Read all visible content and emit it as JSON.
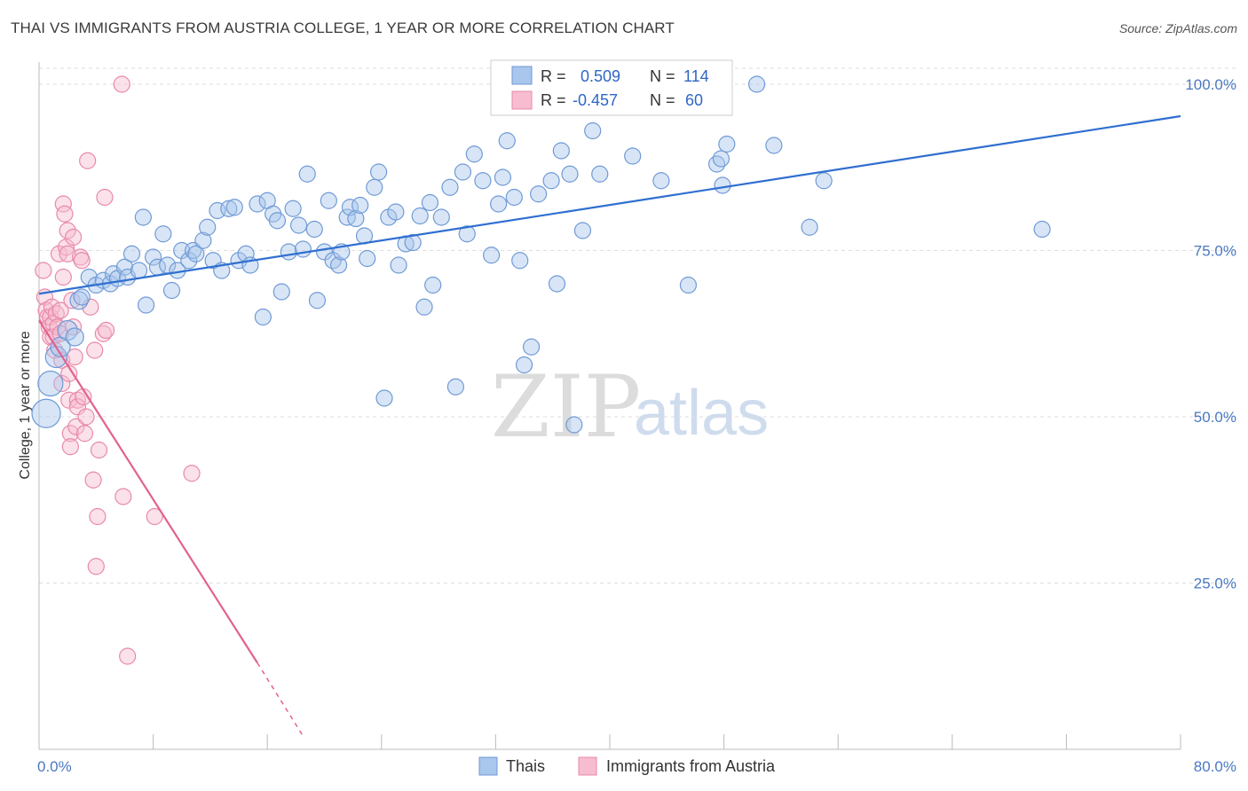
{
  "header": {
    "title": "THAI VS IMMIGRANTS FROM AUSTRIA COLLEGE, 1 YEAR OR MORE CORRELATION CHART",
    "source": "Source: ZipAtlas.com"
  },
  "watermark": {
    "zip": "ZIP",
    "atlas": "atlas"
  },
  "legend": {
    "r_label": "R =",
    "n_label": "N =",
    "series": [
      {
        "r": "0.509",
        "n": "114",
        "color": "#9fc0ea"
      },
      {
        "r": "-0.457",
        "n": "60",
        "color": "#f4aec5"
      }
    ]
  },
  "bottom_legend": [
    "Thais",
    "Immigrants from Austria"
  ],
  "colors": {
    "blue_fill": "#a9c6ec",
    "blue_stroke": "#6f9ad6",
    "blue_line": "#2f6fd0",
    "pink_fill": "#f7bcd0",
    "pink_stroke": "#e889a8",
    "pink_line": "#e2628f",
    "grid": "#dddddd",
    "axis_text": "#4a78c2"
  },
  "chart_data": {
    "type": "scatter",
    "title": "THAI VS IMMIGRANTS FROM AUSTRIA COLLEGE, 1 YEAR OR MORE CORRELATION CHART",
    "xlabel": "",
    "ylabel": "College, 1 year or more",
    "xlim": [
      0,
      80
    ],
    "ylim": [
      0,
      102
    ],
    "x_tick_labels": [
      "0.0%",
      "80.0%"
    ],
    "y_ticks": [
      25,
      50,
      75,
      100
    ],
    "y_tick_labels": [
      "25.0%",
      "50.0%",
      "75.0%",
      "100.0%"
    ],
    "grid": true,
    "legend_position": "top-center",
    "series": [
      {
        "name": "Thais",
        "r": 0.509,
        "n": 114,
        "trend": {
          "x": [
            0,
            80
          ],
          "y": [
            68.5,
            95.2
          ]
        },
        "points": [
          [
            0.5,
            50.5,
            16
          ],
          [
            0.8,
            55,
            14
          ],
          [
            1.2,
            59,
            12
          ],
          [
            1.5,
            60.5,
            11
          ],
          [
            2,
            63,
            11
          ],
          [
            2.5,
            62,
            10
          ],
          [
            2.8,
            67.5,
            10
          ],
          [
            3,
            68,
            9
          ],
          [
            3.5,
            71,
            9
          ],
          [
            4,
            69.8,
            9
          ],
          [
            4.5,
            70.5,
            9
          ],
          [
            5,
            70,
            9
          ],
          [
            5.2,
            71.5,
            9
          ],
          [
            5.5,
            70.8,
            9
          ],
          [
            6,
            72.5,
            9
          ],
          [
            6.2,
            71,
            9
          ],
          [
            6.5,
            74.5,
            9
          ],
          [
            7,
            72,
            9
          ],
          [
            7.3,
            80,
            9
          ],
          [
            7.5,
            66.8,
            9
          ],
          [
            8,
            74,
            9
          ],
          [
            8.3,
            72.5,
            9
          ],
          [
            8.7,
            77.5,
            9
          ],
          [
            9,
            72.8,
            9
          ],
          [
            9.3,
            69,
            9
          ],
          [
            9.7,
            72,
            9
          ],
          [
            10,
            75,
            9
          ],
          [
            10.5,
            73.5,
            9
          ],
          [
            10.8,
            75,
            9
          ],
          [
            11,
            74.5,
            9
          ],
          [
            11.5,
            76.5,
            9
          ],
          [
            11.8,
            78.5,
            9
          ],
          [
            12.2,
            73.5,
            9
          ],
          [
            12.5,
            81,
            9
          ],
          [
            12.8,
            72,
            9
          ],
          [
            13.3,
            81.3,
            9
          ],
          [
            13.7,
            81.5,
            9
          ],
          [
            14,
            73.5,
            9
          ],
          [
            14.5,
            74.5,
            9
          ],
          [
            14.8,
            72.8,
            9
          ],
          [
            15.3,
            82,
            9
          ],
          [
            15.7,
            65,
            9
          ],
          [
            16,
            82.5,
            9
          ],
          [
            16.4,
            80.5,
            9
          ],
          [
            16.7,
            79.5,
            9
          ],
          [
            17,
            68.8,
            9
          ],
          [
            17.5,
            74.8,
            9
          ],
          [
            17.8,
            81.3,
            9
          ],
          [
            18.2,
            78.8,
            9
          ],
          [
            18.5,
            75.2,
            9
          ],
          [
            18.8,
            86.5,
            9
          ],
          [
            19.3,
            78.2,
            9
          ],
          [
            19.5,
            67.5,
            9
          ],
          [
            20,
            74.8,
            9
          ],
          [
            20.3,
            82.5,
            9
          ],
          [
            20.6,
            73.5,
            9
          ],
          [
            21,
            72.8,
            9
          ],
          [
            21.2,
            74.8,
            9
          ],
          [
            21.6,
            80,
            9
          ],
          [
            21.8,
            81.5,
            9
          ],
          [
            22.2,
            79.8,
            9
          ],
          [
            22.5,
            81.8,
            9
          ],
          [
            22.8,
            77.2,
            9
          ],
          [
            23,
            73.8,
            9
          ],
          [
            23.5,
            84.5,
            9
          ],
          [
            23.8,
            86.8,
            9
          ],
          [
            24.2,
            52.8,
            9
          ],
          [
            24.5,
            80,
            9
          ],
          [
            25,
            80.8,
            9
          ],
          [
            25.2,
            72.8,
            9
          ],
          [
            25.7,
            76,
            9
          ],
          [
            26.2,
            76.2,
            9
          ],
          [
            26.7,
            80.2,
            9
          ],
          [
            27,
            66.5,
            9
          ],
          [
            27.4,
            82.2,
            9
          ],
          [
            27.6,
            69.8,
            9
          ],
          [
            28.2,
            80,
            9
          ],
          [
            28.8,
            84.5,
            9
          ],
          [
            29.2,
            54.5,
            9
          ],
          [
            29.7,
            86.8,
            9
          ],
          [
            30,
            77.5,
            9
          ],
          [
            30.5,
            89.5,
            9
          ],
          [
            31.1,
            85.5,
            9
          ],
          [
            31.7,
            74.3,
            9
          ],
          [
            32.2,
            82,
            9
          ],
          [
            32.5,
            86,
            9
          ],
          [
            32.8,
            91.5,
            9
          ],
          [
            33.3,
            83,
            9
          ],
          [
            33.7,
            73.5,
            9
          ],
          [
            34,
            57.8,
            9
          ],
          [
            34.5,
            60.5,
            9
          ],
          [
            35,
            83.5,
            9
          ],
          [
            35.9,
            85.5,
            9
          ],
          [
            36.3,
            70,
            9
          ],
          [
            36.6,
            90,
            9
          ],
          [
            37.2,
            86.5,
            9
          ],
          [
            37.5,
            48.8,
            9
          ],
          [
            38.1,
            78,
            9
          ],
          [
            38.8,
            93,
            9
          ],
          [
            39.3,
            86.5,
            9
          ],
          [
            41.6,
            89.2,
            9
          ],
          [
            43.6,
            85.5,
            9
          ],
          [
            45.5,
            69.8,
            9
          ],
          [
            47.5,
            88,
            9
          ],
          [
            47.8,
            88.8,
            9
          ],
          [
            47.9,
            84.8,
            9
          ],
          [
            48.2,
            91,
            9
          ],
          [
            50.3,
            100,
            9
          ],
          [
            51.5,
            90.8,
            9
          ],
          [
            54,
            78.5,
            9
          ],
          [
            55,
            85.5,
            9
          ],
          [
            70.3,
            78.2,
            9
          ]
        ]
      },
      {
        "name": "Immigrants from Austria",
        "r": -0.457,
        "n": 60,
        "trend": {
          "x": [
            0,
            15.3
          ],
          "y": [
            64.5,
            13
          ]
        },
        "trend_dashed": {
          "x": [
            15.3,
            18.5
          ],
          "y": [
            13,
            2
          ]
        },
        "points": [
          [
            0.3,
            72,
            9
          ],
          [
            0.4,
            68,
            9
          ],
          [
            0.5,
            66,
            9
          ],
          [
            0.6,
            65,
            9
          ],
          [
            0.7,
            63.5,
            9
          ],
          [
            0.8,
            62,
            9
          ],
          [
            0.8,
            65,
            9
          ],
          [
            0.9,
            66.5,
            9
          ],
          [
            1,
            64,
            9
          ],
          [
            1,
            62,
            9
          ],
          [
            1.1,
            60,
            9
          ],
          [
            1.2,
            65.5,
            9
          ],
          [
            1.3,
            63.5,
            9
          ],
          [
            1.4,
            74.5,
            9
          ],
          [
            1.5,
            62.5,
            9
          ],
          [
            1.5,
            66,
            9
          ],
          [
            1.6,
            58.5,
            9
          ],
          [
            1.6,
            55,
            9
          ],
          [
            1.7,
            71,
            9
          ],
          [
            1.7,
            82,
            9
          ],
          [
            1.8,
            80.5,
            9
          ],
          [
            1.9,
            75.5,
            9
          ],
          [
            2,
            74.5,
            9
          ],
          [
            2,
            78,
            9
          ],
          [
            2.1,
            56.5,
            9
          ],
          [
            2.1,
            52.5,
            9
          ],
          [
            2.2,
            47.5,
            9
          ],
          [
            2.2,
            45.5,
            9
          ],
          [
            2.3,
            67.5,
            9
          ],
          [
            2.4,
            63.5,
            9
          ],
          [
            2.4,
            77,
            9
          ],
          [
            2.5,
            59,
            9
          ],
          [
            2.6,
            48.5,
            9
          ],
          [
            2.7,
            52.5,
            9
          ],
          [
            2.7,
            51.5,
            9
          ],
          [
            2.9,
            74,
            9
          ],
          [
            3,
            73.5,
            9
          ],
          [
            3.1,
            53,
            9
          ],
          [
            3.2,
            47.5,
            9
          ],
          [
            3.3,
            50,
            9
          ],
          [
            3.4,
            88.5,
            9
          ],
          [
            3.6,
            66.5,
            9
          ],
          [
            3.8,
            40.5,
            9
          ],
          [
            3.9,
            60,
            9
          ],
          [
            4,
            27.5,
            9
          ],
          [
            4.1,
            35,
            9
          ],
          [
            4.2,
            45,
            9
          ],
          [
            4.5,
            62.5,
            9
          ],
          [
            4.6,
            83,
            9
          ],
          [
            4.7,
            63,
            9
          ],
          [
            5.8,
            100,
            9
          ],
          [
            5.9,
            38,
            9
          ],
          [
            6.2,
            14,
            9
          ],
          [
            8.1,
            35,
            9
          ],
          [
            10.7,
            41.5,
            9
          ]
        ]
      }
    ]
  }
}
